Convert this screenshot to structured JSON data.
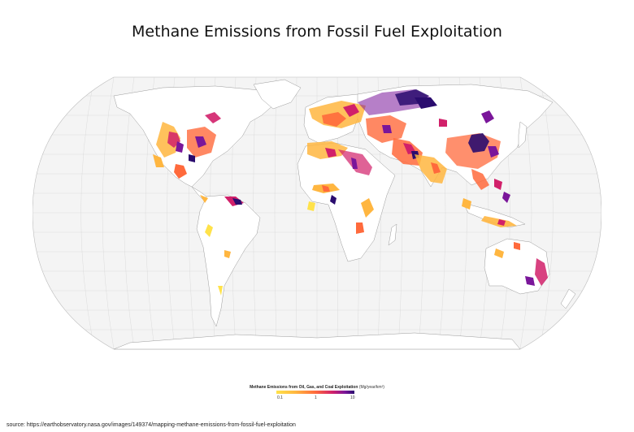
{
  "title": "Methane Emissions from Fossil Fuel Exploitation",
  "legend": {
    "label": "Methane Emissions from Oil, Gas, and Coal Exploitation",
    "unit": "(Mg/year/km²)",
    "ticks": [
      "0.1",
      "1",
      "10"
    ],
    "scale": "log",
    "colors": [
      "#ffe24a",
      "#ffb640",
      "#ff6a3c",
      "#d1206a",
      "#7a169a",
      "#2a0c6e"
    ]
  },
  "map": {
    "projection": "Robinson",
    "land_color": "#ffffff",
    "ocean_color": "#f4f4f4",
    "graticule": true
  },
  "source": "source: https://earthobservatory.nasa.gov/images/149374/mapping-methane-emissions-from-fossil-fuel-exploitation"
}
